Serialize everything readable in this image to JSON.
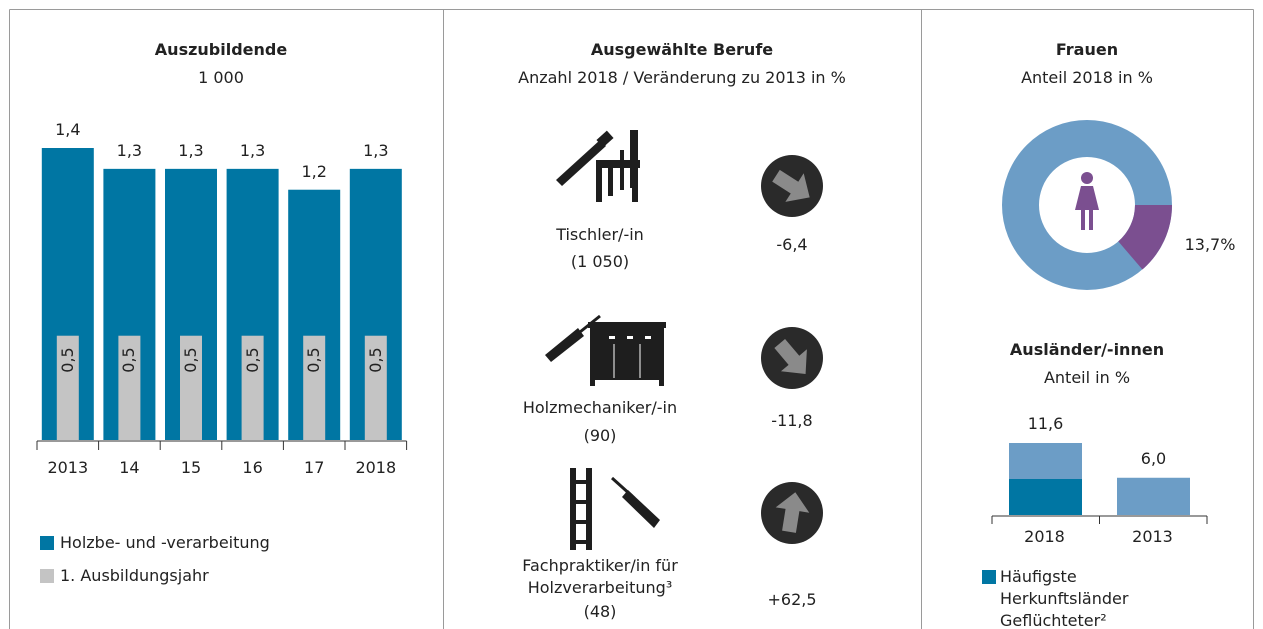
{
  "chart_data": [
    {
      "type": "bar",
      "title": "Auszubildende",
      "subtitle": "1 000",
      "categories": [
        "2013",
        "14",
        "15",
        "16",
        "17",
        "2018"
      ],
      "series": [
        {
          "name": "Holzbe- und -verarbeitung",
          "color": "#0076a3",
          "values": [
            1.4,
            1.3,
            1.3,
            1.3,
            1.2,
            1.3
          ],
          "value_labels": [
            "1,4",
            "1,3",
            "1,3",
            "1,3",
            "1,2",
            "1,3"
          ]
        },
        {
          "name": "1. Ausbildungsjahr",
          "color": "#c4c4c4",
          "values": [
            0.5,
            0.5,
            0.5,
            0.5,
            0.5,
            0.5
          ],
          "value_labels": [
            "0,5",
            "0,5",
            "0,5",
            "0,5",
            "0,5",
            "0,5"
          ]
        }
      ]
    },
    {
      "type": "change-list",
      "title": "Ausgewählte Berufe",
      "subtitle": "Anzahl 2018 / Veränderung zu 2013 in %",
      "categories": [
        "Tischler/-in",
        "Holzmechaniker/-in",
        "Fachpraktiker/in für Holzverarbeitung³"
      ],
      "counts": [
        1050,
        90,
        48
      ],
      "count_labels": [
        "(1 050)",
        "(90)",
        "(48)"
      ],
      "values": [
        -6.4,
        -11.8,
        62.5
      ],
      "value_labels": [
        "-6,4",
        "-11,8",
        "+62,5"
      ],
      "color": "#8a8a8a"
    },
    {
      "type": "donut",
      "title": "Frauen",
      "subtitle": "Anteil 2018 in %",
      "values": [
        13.7
      ],
      "value_labels": [
        "13,7%"
      ],
      "color": "#7b4f90",
      "rest_color": "#6c9dc6"
    },
    {
      "type": "overlay-bar",
      "title": "Ausländer/-innen",
      "subtitle": "Anteil in %",
      "categories": [
        "2018",
        "2013"
      ],
      "values": [
        11.6,
        6.0
      ],
      "value_labels": [
        "11,6",
        "6,0"
      ],
      "color": "#6c9dc6",
      "series": [
        {
          "name": "Häufigste Herkunftsländer Geflüchteter²",
          "color": "#0076a3",
          "values": [
            5.8,
            null
          ]
        }
      ]
    }
  ]
}
